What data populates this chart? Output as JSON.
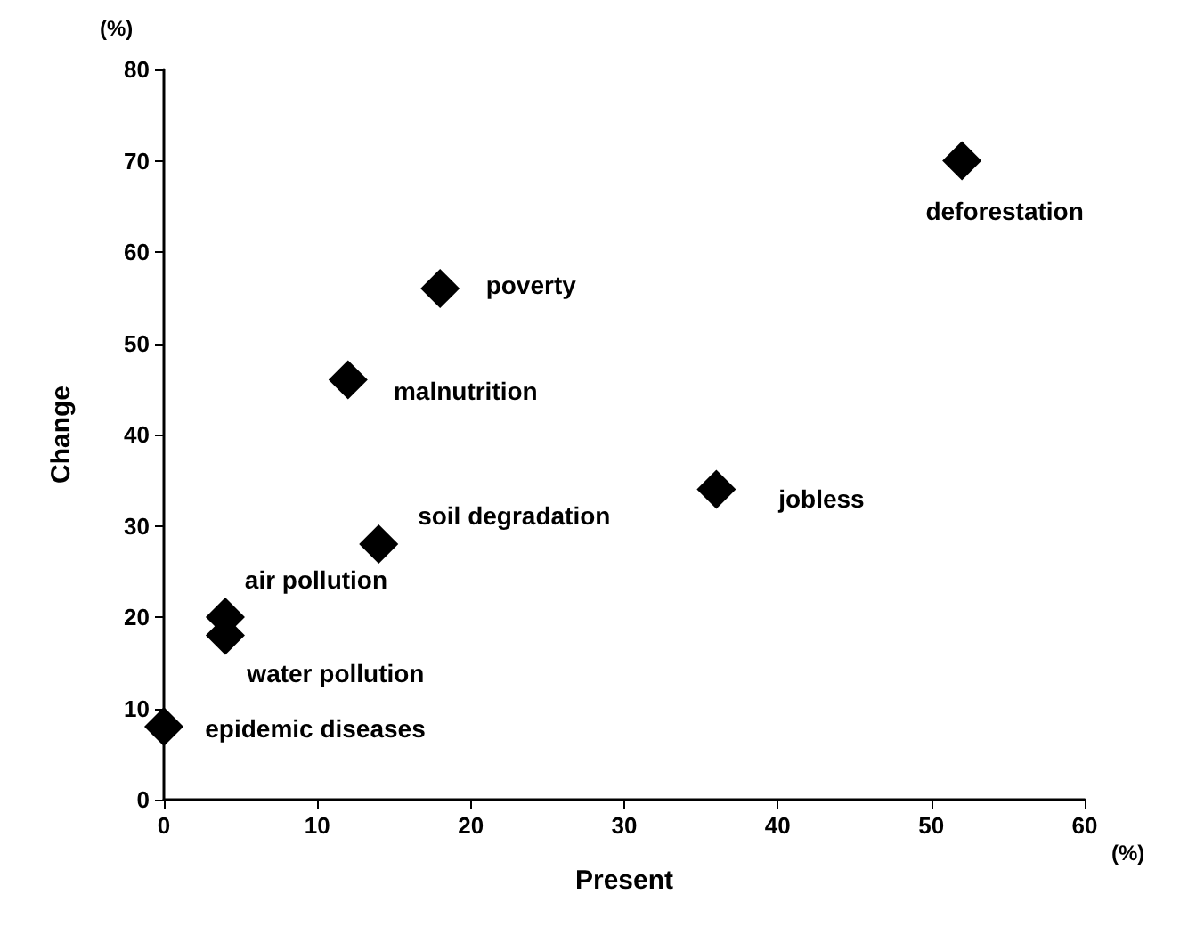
{
  "chart_data": {
    "type": "scatter",
    "xlabel": "Present",
    "ylabel": "Change",
    "x": [
      52,
      18,
      12,
      14,
      36,
      4,
      4,
      0
    ],
    "values": [
      70,
      56,
      46,
      28,
      34,
      20,
      18,
      8
    ],
    "color": "#000000",
    "marker": "diamond",
    "grid": false,
    "xlim": [
      0,
      60
    ],
    "xticks": [
      0,
      10,
      20,
      30,
      40,
      50,
      60
    ],
    "ylim": [
      0,
      80
    ],
    "yticks": [
      0,
      10,
      20,
      30,
      40,
      50,
      60,
      70,
      80
    ],
    "annotations": [
      {
        "text": "deforestation",
        "x": 52,
        "y": 70
      },
      {
        "text": "poverty",
        "x": 18,
        "y": 56
      },
      {
        "text": "malnutrition",
        "x": 12,
        "y": 46
      },
      {
        "text": "soil degradation",
        "x": 14,
        "y": 28
      },
      {
        "text": "jobless",
        "x": 36,
        "y": 34
      },
      {
        "text": "air pollution",
        "x": 4,
        "y": 20
      },
      {
        "text": "water pollution",
        "x": 4,
        "y": 18
      },
      {
        "text": "epidemic diseases",
        "x": 0,
        "y": 8
      },
      "(%)",
      "(%)"
    ]
  }
}
